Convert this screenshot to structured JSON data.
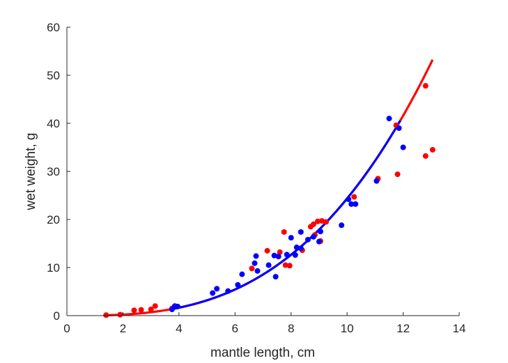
{
  "chart_data": {
    "type": "scatter",
    "title": "",
    "xlabel": "mantle length, cm",
    "ylabel": "wet weight, g",
    "xlim": [
      0,
      14
    ],
    "ylim": [
      0,
      60
    ],
    "xticks": [
      0,
      2,
      4,
      6,
      8,
      10,
      12,
      14
    ],
    "yticks": [
      0,
      10,
      20,
      30,
      40,
      50,
      60
    ],
    "grid": false,
    "legend": "none",
    "series": [
      {
        "kind": "points",
        "color": "#ff0000",
        "points": [
          [
            1.4,
            0.1
          ],
          [
            1.9,
            0.2
          ],
          [
            2.4,
            1.1
          ],
          [
            2.65,
            1.2
          ],
          [
            3.0,
            1.3
          ],
          [
            3.15,
            2.0
          ],
          [
            3.75,
            1.5
          ],
          [
            6.6,
            9.8
          ],
          [
            7.15,
            13.5
          ],
          [
            7.6,
            13.2
          ],
          [
            7.75,
            17.4
          ],
          [
            7.8,
            10.5
          ],
          [
            7.95,
            10.4
          ],
          [
            8.4,
            13.6
          ],
          [
            8.7,
            18.5
          ],
          [
            8.8,
            19.0
          ],
          [
            8.85,
            16.8
          ],
          [
            8.95,
            19.6
          ],
          [
            9.05,
            15.5
          ],
          [
            9.1,
            19.7
          ],
          [
            9.25,
            19.5
          ],
          [
            10.25,
            24.7
          ],
          [
            11.1,
            28.5
          ],
          [
            11.75,
            39.6
          ],
          [
            11.8,
            29.4
          ],
          [
            12.8,
            47.8
          ],
          [
            12.8,
            33.2
          ],
          [
            13.05,
            34.5
          ]
        ]
      },
      {
        "kind": "points",
        "color": "#0000ff",
        "points": [
          [
            3.75,
            1.3
          ],
          [
            3.85,
            2.0
          ],
          [
            3.95,
            1.9
          ],
          [
            5.2,
            4.7
          ],
          [
            5.35,
            5.6
          ],
          [
            5.75,
            5.1
          ],
          [
            6.1,
            6.4
          ],
          [
            6.25,
            8.6
          ],
          [
            6.7,
            10.9
          ],
          [
            6.75,
            12.4
          ],
          [
            6.8,
            9.3
          ],
          [
            7.2,
            10.5
          ],
          [
            7.4,
            12.5
          ],
          [
            7.45,
            8.1
          ],
          [
            7.55,
            12.3
          ],
          [
            7.85,
            12.7
          ],
          [
            8.0,
            16.2
          ],
          [
            8.15,
            12.6
          ],
          [
            8.2,
            14.2
          ],
          [
            8.35,
            17.4
          ],
          [
            8.35,
            14.0
          ],
          [
            8.6,
            15.8
          ],
          [
            8.8,
            16.4
          ],
          [
            9.0,
            15.4
          ],
          [
            9.05,
            17.5
          ],
          [
            9.8,
            18.8
          ],
          [
            10.05,
            24.2
          ],
          [
            10.15,
            23.2
          ],
          [
            10.3,
            23.2
          ],
          [
            11.05,
            28.0
          ],
          [
            11.5,
            41.0
          ],
          [
            11.85,
            39.0
          ],
          [
            12.0,
            35.0
          ]
        ]
      },
      {
        "kind": "curve",
        "color": "#ff0000",
        "x": [
          1.3,
          13.05
        ]
      },
      {
        "kind": "curve",
        "color": "#0000ff",
        "x": [
          3.7,
          11.9
        ]
      }
    ]
  }
}
